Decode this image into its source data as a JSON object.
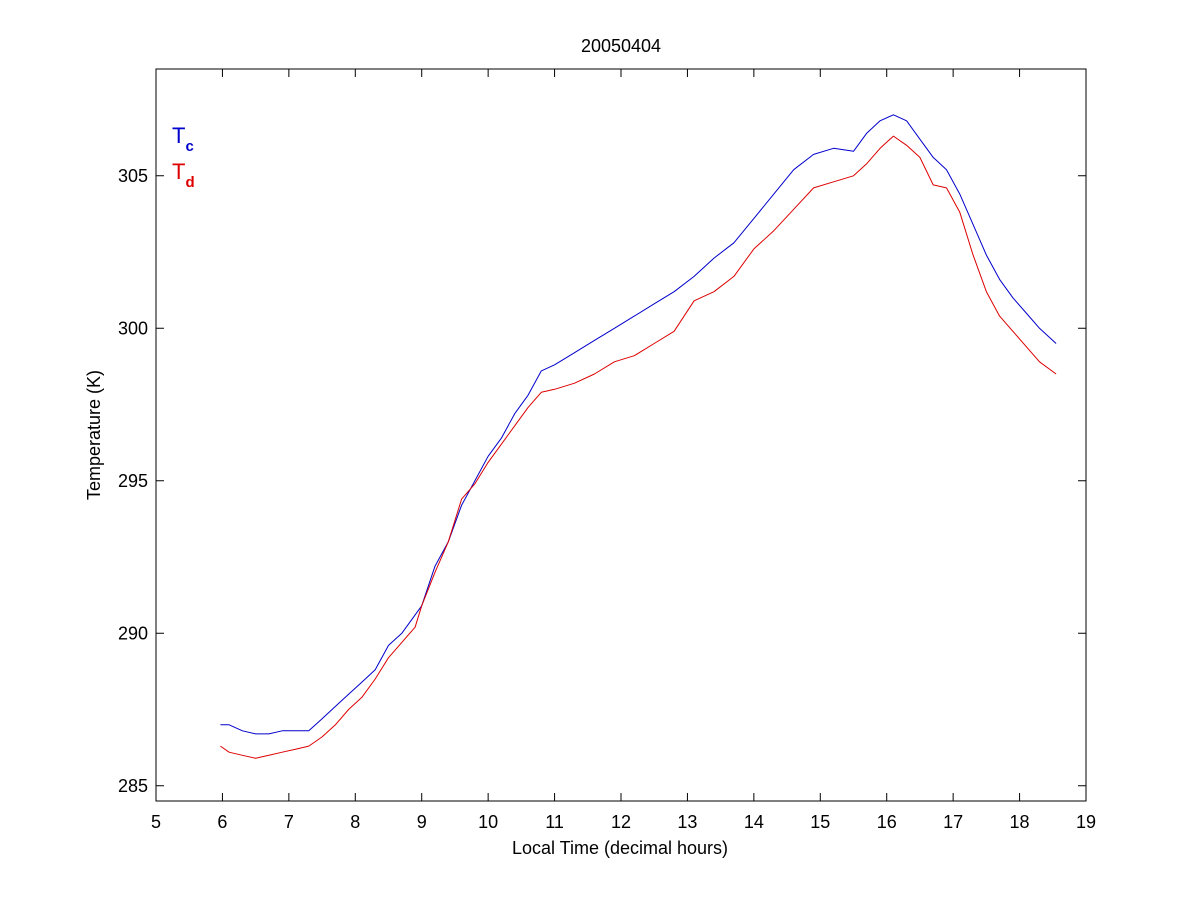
{
  "chart_data": {
    "type": "line",
    "title": "20050404",
    "xlabel": "Local Time (decimal hours)",
    "ylabel": "Temperature (K)",
    "xlim": [
      5,
      19
    ],
    "ylim": [
      284.5,
      308.5
    ],
    "xticks": [
      5,
      6,
      7,
      8,
      9,
      10,
      11,
      12,
      13,
      14,
      15,
      16,
      17,
      18,
      19
    ],
    "yticks": [
      285,
      290,
      295,
      300,
      305
    ],
    "grid": false,
    "legend_position": "top-left",
    "series": [
      {
        "key": "Tc",
        "name_main": "T",
        "name_sub": "c",
        "color": "#0000cc",
        "x": [
          5.97,
          6.1,
          6.3,
          6.5,
          6.7,
          6.9,
          7.1,
          7.3,
          7.5,
          7.7,
          7.9,
          8.1,
          8.3,
          8.5,
          8.7,
          8.9,
          9.0,
          9.2,
          9.4,
          9.6,
          9.8,
          10.0,
          10.2,
          10.4,
          10.6,
          10.8,
          11.0,
          11.3,
          11.6,
          11.9,
          12.2,
          12.5,
          12.8,
          13.1,
          13.4,
          13.7,
          14.0,
          14.3,
          14.6,
          14.9,
          15.2,
          15.5,
          15.7,
          15.9,
          16.1,
          16.3,
          16.5,
          16.7,
          16.9,
          17.1,
          17.3,
          17.5,
          17.7,
          17.9,
          18.1,
          18.3,
          18.55
        ],
        "y": [
          287.0,
          287.0,
          286.8,
          286.7,
          286.7,
          286.8,
          286.8,
          286.8,
          287.2,
          287.6,
          288.0,
          288.4,
          288.8,
          289.6,
          290.0,
          290.6,
          290.9,
          292.2,
          293.0,
          294.2,
          295.0,
          295.8,
          296.4,
          297.2,
          297.8,
          298.6,
          298.8,
          299.2,
          299.6,
          300.0,
          300.4,
          300.8,
          301.2,
          301.7,
          302.3,
          302.8,
          303.6,
          304.4,
          305.2,
          305.7,
          305.9,
          305.8,
          306.4,
          306.8,
          307.0,
          306.8,
          306.2,
          305.6,
          305.2,
          304.4,
          303.4,
          302.4,
          301.6,
          301.0,
          300.5,
          300.0,
          299.5
        ]
      },
      {
        "key": "Td",
        "name_main": "T",
        "name_sub": "d",
        "color": "#dd0000",
        "x": [
          5.97,
          6.1,
          6.3,
          6.5,
          6.7,
          6.9,
          7.1,
          7.3,
          7.5,
          7.7,
          7.9,
          8.1,
          8.3,
          8.5,
          8.7,
          8.9,
          9.0,
          9.2,
          9.4,
          9.6,
          9.8,
          10.0,
          10.2,
          10.4,
          10.6,
          10.8,
          11.0,
          11.3,
          11.6,
          11.9,
          12.2,
          12.5,
          12.8,
          13.1,
          13.4,
          13.7,
          14.0,
          14.3,
          14.6,
          14.9,
          15.2,
          15.5,
          15.7,
          15.9,
          16.1,
          16.3,
          16.5,
          16.7,
          16.9,
          17.1,
          17.3,
          17.5,
          17.7,
          17.9,
          18.1,
          18.3,
          18.55
        ],
        "y": [
          286.3,
          286.1,
          286.0,
          285.9,
          286.0,
          286.1,
          286.2,
          286.3,
          286.6,
          287.0,
          287.5,
          287.9,
          288.5,
          289.2,
          289.7,
          290.2,
          290.9,
          292.0,
          293.0,
          294.4,
          294.9,
          295.6,
          296.2,
          296.8,
          297.4,
          297.9,
          298.0,
          298.2,
          298.5,
          298.9,
          299.1,
          299.5,
          299.9,
          300.9,
          301.2,
          301.7,
          302.6,
          303.2,
          303.9,
          304.6,
          304.8,
          305.0,
          305.4,
          305.9,
          306.3,
          306.0,
          305.6,
          304.7,
          304.6,
          303.8,
          302.4,
          301.2,
          300.4,
          299.9,
          299.4,
          298.9,
          298.5
        ]
      }
    ]
  }
}
